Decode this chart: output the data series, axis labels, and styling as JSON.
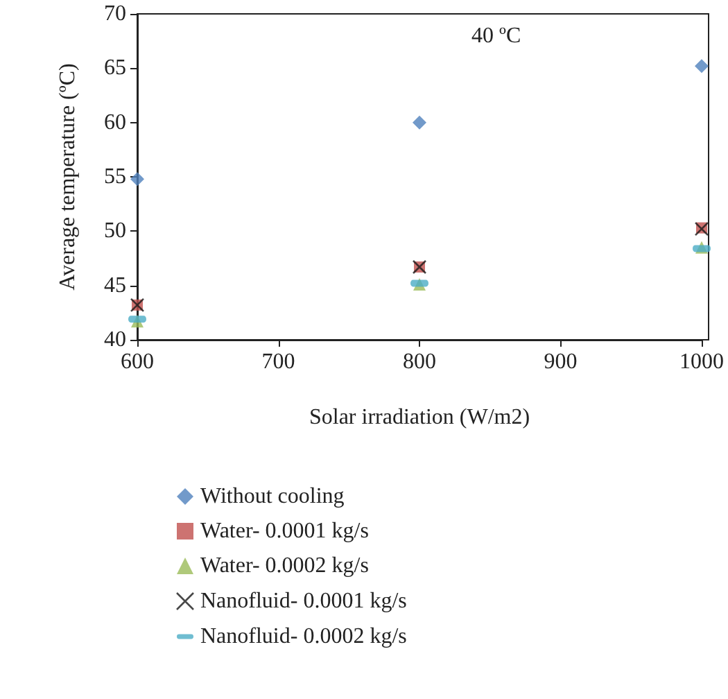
{
  "chart_data": {
    "type": "scatter",
    "xlabel": "Solar irradiation (W/m2)",
    "ylabel": "Average temperature (ºC)",
    "annotations": [
      "40 ºC"
    ],
    "xlim": [
      600,
      1000
    ],
    "xticks": [
      600,
      700,
      800,
      900,
      1000
    ],
    "ylim": [
      40,
      70
    ],
    "yticks": [
      40,
      45,
      50,
      55,
      60,
      65,
      70
    ],
    "grid": false,
    "legend": "bottom",
    "x": [
      600,
      800,
      1000
    ],
    "series": [
      {
        "name": "Without cooling",
        "color": "#4f81bd",
        "marker": "diamond",
        "values": [
          54.8,
          60,
          65.2
        ]
      },
      {
        "name": "Water- 0.0001 kg/s",
        "color": "#c0504d",
        "marker": "square",
        "values": [
          43.2,
          46.7,
          50.3
        ]
      },
      {
        "name": "Water- 0.0002 kg/s",
        "color": "#9bbb59",
        "marker": "triangle",
        "values": [
          41.7,
          45.1,
          48.5
        ]
      },
      {
        "name": "Nanofluid- 0.0001 kg/s",
        "color": "#1a1a1a",
        "marker": "cross",
        "values": [
          43.2,
          46.7,
          50.2
        ]
      },
      {
        "name": "Nanofluid- 0.0002 kg/s",
        "color": "#4bacc6",
        "values": [
          41.9,
          45.2,
          48.4
        ]
      }
    ]
  }
}
